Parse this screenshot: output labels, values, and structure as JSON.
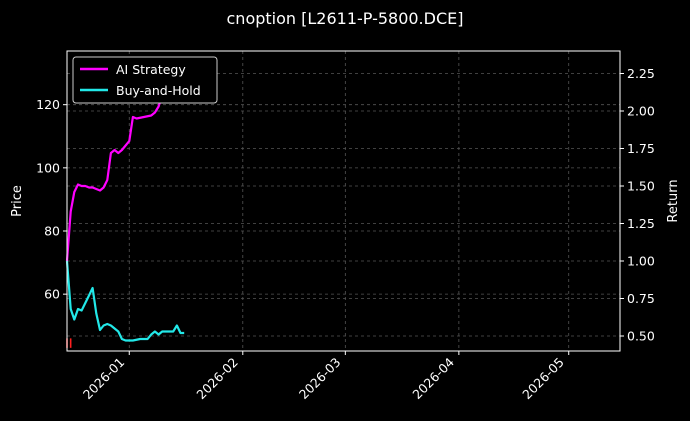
{
  "chart_data": {
    "type": "line",
    "title": "cnoption [L2611-P-5800.DCE]",
    "xlabel": "",
    "ylabel_left": "Price",
    "ylabel_right": "Return",
    "x_range": [
      "2025-12-15",
      "2026-05-15"
    ],
    "x_ticks": [
      "2026-01-01",
      "2026-02-01",
      "2026-03-01",
      "2026-04-01",
      "2026-05-01"
    ],
    "x_tick_labels": [
      "2026-01",
      "2026-02",
      "2026-03",
      "2026-04",
      "2026-05"
    ],
    "ylim_left": [
      42,
      137
    ],
    "yticks_left": [
      60,
      80,
      100,
      120
    ],
    "ylim_right": [
      0.4,
      2.4
    ],
    "yticks_right": [
      0.5,
      0.75,
      1.0,
      1.25,
      1.5,
      1.75,
      2.0,
      2.25
    ],
    "ytick_labels_right": [
      "0.50",
      "0.75",
      "1.00",
      "1.25",
      "1.50",
      "1.75",
      "2.00",
      "2.25"
    ],
    "grid": true,
    "legend_position": "top-left",
    "colors": {
      "background": "#000000",
      "ai_strategy": "#ff00ff",
      "buy_and_hold": "#22e8e8",
      "marker": "#ff2020",
      "grid": "#555555"
    },
    "series": [
      {
        "name": "AI Strategy",
        "axis": "right",
        "color": "#ff00ff",
        "points": [
          [
            "2025-12-15",
            1.0
          ],
          [
            "2025-12-16",
            1.33
          ],
          [
            "2025-12-17",
            1.46
          ],
          [
            "2025-12-18",
            1.51
          ],
          [
            "2025-12-19",
            1.5
          ],
          [
            "2025-12-20",
            1.5
          ],
          [
            "2025-12-21",
            1.49
          ],
          [
            "2025-12-22",
            1.49
          ],
          [
            "2025-12-23",
            1.48
          ],
          [
            "2025-12-24",
            1.47
          ],
          [
            "2025-12-25",
            1.49
          ],
          [
            "2025-12-26",
            1.54
          ],
          [
            "2025-12-27",
            1.72
          ],
          [
            "2025-12-28",
            1.74
          ],
          [
            "2025-12-29",
            1.72
          ],
          [
            "2025-12-30",
            1.74
          ],
          [
            "2025-12-31",
            1.77
          ],
          [
            "2026-01-01",
            1.8
          ],
          [
            "2026-01-02",
            1.96
          ],
          [
            "2026-01-03",
            1.95
          ],
          [
            "2026-01-05",
            1.96
          ],
          [
            "2026-01-07",
            1.97
          ],
          [
            "2026-01-08",
            1.99
          ],
          [
            "2026-01-09",
            2.03
          ],
          [
            "2026-01-10",
            2.11
          ],
          [
            "2026-01-11",
            2.18
          ],
          [
            "2026-01-12",
            2.22
          ],
          [
            "2026-01-14",
            2.24
          ],
          [
            "2026-01-16",
            2.26
          ],
          [
            "2026-01-18",
            2.26
          ]
        ]
      },
      {
        "name": "Buy-and-Hold",
        "axis": "right",
        "color": "#22e8e8",
        "points": [
          [
            "2025-12-15",
            1.0
          ],
          [
            "2025-12-16",
            0.68
          ],
          [
            "2025-12-17",
            0.61
          ],
          [
            "2025-12-18",
            0.68
          ],
          [
            "2025-12-19",
            0.67
          ],
          [
            "2025-12-20",
            0.72
          ],
          [
            "2025-12-21",
            0.77
          ],
          [
            "2025-12-22",
            0.82
          ],
          [
            "2025-12-23",
            0.65
          ],
          [
            "2025-12-24",
            0.54
          ],
          [
            "2025-12-25",
            0.57
          ],
          [
            "2025-12-26",
            0.58
          ],
          [
            "2025-12-27",
            0.57
          ],
          [
            "2025-12-28",
            0.55
          ],
          [
            "2025-12-29",
            0.53
          ],
          [
            "2025-12-30",
            0.48
          ],
          [
            "2025-12-31",
            0.47
          ],
          [
            "2026-01-02",
            0.47
          ],
          [
            "2026-01-04",
            0.48
          ],
          [
            "2026-01-06",
            0.48
          ],
          [
            "2026-01-07",
            0.51
          ],
          [
            "2026-01-08",
            0.53
          ],
          [
            "2026-01-09",
            0.51
          ],
          [
            "2026-01-10",
            0.53
          ],
          [
            "2026-01-11",
            0.53
          ],
          [
            "2026-01-13",
            0.53
          ],
          [
            "2026-01-14",
            0.57
          ],
          [
            "2026-01-15",
            0.52
          ],
          [
            "2026-01-16",
            0.52
          ]
        ]
      }
    ],
    "price_markers": [
      {
        "x": "2025-12-15",
        "low": 43,
        "high": 46
      },
      {
        "x": "2025-12-16",
        "low": 43,
        "high": 46
      }
    ]
  }
}
